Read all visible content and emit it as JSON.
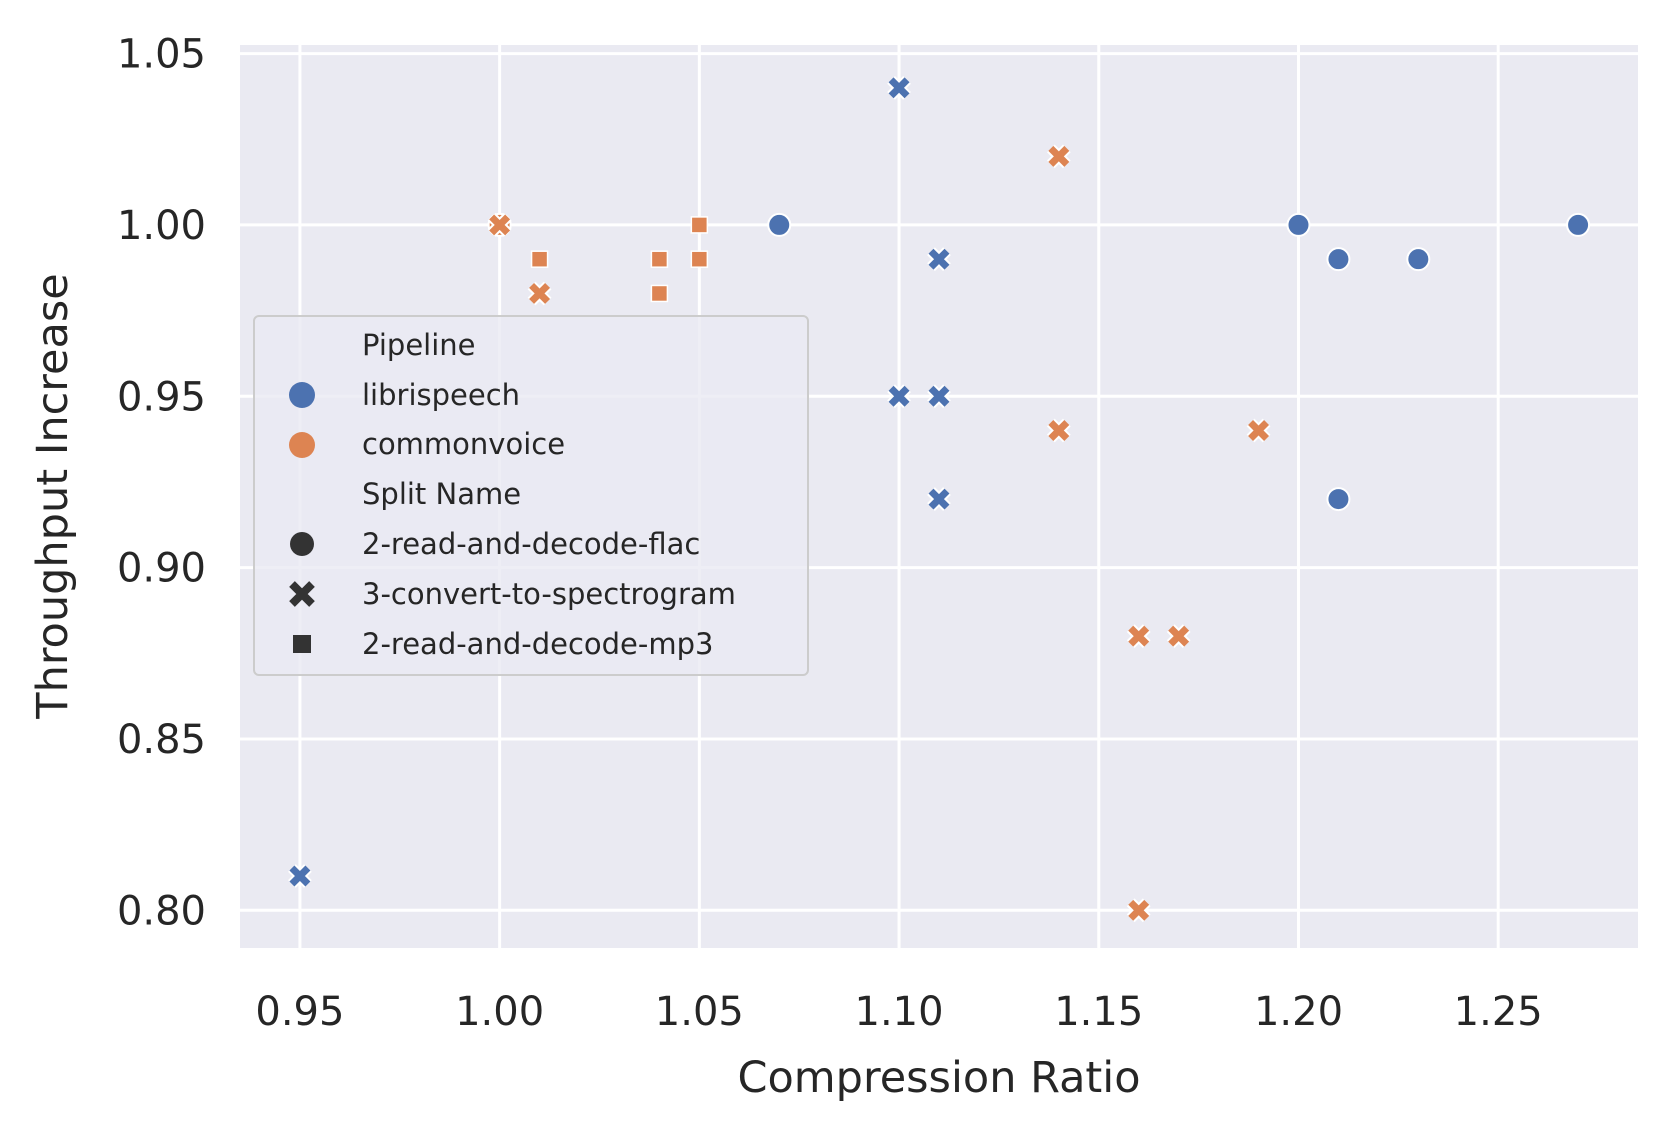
{
  "chart_data": {
    "type": "scatter",
    "xlabel": "Compression Ratio",
    "ylabel": "Throughput Increase",
    "xlim": [
      0.935,
      1.285
    ],
    "ylim": [
      0.789,
      1.0525
    ],
    "xticks": [
      0.95,
      1.0,
      1.05,
      1.1,
      1.15,
      1.2,
      1.25
    ],
    "xtick_labels": [
      "0.95",
      "1.00",
      "1.05",
      "1.10",
      "1.15",
      "1.20",
      "1.25"
    ],
    "yticks": [
      0.8,
      0.85,
      0.9,
      0.95,
      1.0,
      1.05
    ],
    "ytick_labels": [
      "0.80",
      "0.85",
      "0.90",
      "0.95",
      "1.00",
      "1.05"
    ],
    "grid": true,
    "background": "#eaeaf2",
    "legend": {
      "placement": "center-left",
      "hue_title": "Pipeline",
      "style_title": "Split Name",
      "pipelines": [
        {
          "name": "librispeech",
          "color": "#4c72b0"
        },
        {
          "name": "commonvoice",
          "color": "#dd8452"
        }
      ],
      "splits": [
        {
          "name": "2-read-and-decode-flac",
          "marker": "circle"
        },
        {
          "name": "3-convert-to-spectrogram",
          "marker": "x"
        },
        {
          "name": "2-read-and-decode-mp3",
          "marker": "square"
        }
      ]
    },
    "points": [
      {
        "x": 1.0,
        "y": 1.0,
        "pipeline": "librispeech",
        "split": "2-read-and-decode-flac"
      },
      {
        "x": 1.07,
        "y": 1.0,
        "pipeline": "librispeech",
        "split": "2-read-and-decode-flac"
      },
      {
        "x": 1.2,
        "y": 1.0,
        "pipeline": "librispeech",
        "split": "2-read-and-decode-flac"
      },
      {
        "x": 1.21,
        "y": 0.99,
        "pipeline": "librispeech",
        "split": "2-read-and-decode-flac"
      },
      {
        "x": 1.23,
        "y": 0.99,
        "pipeline": "librispeech",
        "split": "2-read-and-decode-flac"
      },
      {
        "x": 1.27,
        "y": 1.0,
        "pipeline": "librispeech",
        "split": "2-read-and-decode-flac"
      },
      {
        "x": 1.21,
        "y": 0.92,
        "pipeline": "librispeech",
        "split": "2-read-and-decode-flac"
      },
      {
        "x": 1.0,
        "y": 1.0,
        "pipeline": "librispeech",
        "split": "3-convert-to-spectrogram"
      },
      {
        "x": 1.1,
        "y": 1.04,
        "pipeline": "librispeech",
        "split": "3-convert-to-spectrogram"
      },
      {
        "x": 1.11,
        "y": 0.99,
        "pipeline": "librispeech",
        "split": "3-convert-to-spectrogram"
      },
      {
        "x": 1.1,
        "y": 0.95,
        "pipeline": "librispeech",
        "split": "3-convert-to-spectrogram"
      },
      {
        "x": 1.11,
        "y": 0.95,
        "pipeline": "librispeech",
        "split": "3-convert-to-spectrogram"
      },
      {
        "x": 1.11,
        "y": 0.92,
        "pipeline": "librispeech",
        "split": "3-convert-to-spectrogram"
      },
      {
        "x": 0.95,
        "y": 0.81,
        "pipeline": "librispeech",
        "split": "3-convert-to-spectrogram"
      },
      {
        "x": 1.0,
        "y": 1.0,
        "pipeline": "commonvoice",
        "split": "2-read-and-decode-flac"
      },
      {
        "x": 1.0,
        "y": 1.0,
        "pipeline": "commonvoice",
        "split": "3-convert-to-spectrogram"
      },
      {
        "x": 1.01,
        "y": 0.98,
        "pipeline": "commonvoice",
        "split": "3-convert-to-spectrogram"
      },
      {
        "x": 1.14,
        "y": 1.02,
        "pipeline": "commonvoice",
        "split": "3-convert-to-spectrogram"
      },
      {
        "x": 1.14,
        "y": 0.94,
        "pipeline": "commonvoice",
        "split": "3-convert-to-spectrogram"
      },
      {
        "x": 1.19,
        "y": 0.94,
        "pipeline": "commonvoice",
        "split": "3-convert-to-spectrogram"
      },
      {
        "x": 1.16,
        "y": 0.88,
        "pipeline": "commonvoice",
        "split": "3-convert-to-spectrogram"
      },
      {
        "x": 1.17,
        "y": 0.88,
        "pipeline": "commonvoice",
        "split": "3-convert-to-spectrogram"
      },
      {
        "x": 1.16,
        "y": 0.8,
        "pipeline": "commonvoice",
        "split": "3-convert-to-spectrogram"
      },
      {
        "x": 1.01,
        "y": 0.99,
        "pipeline": "commonvoice",
        "split": "2-read-and-decode-mp3"
      },
      {
        "x": 1.04,
        "y": 0.99,
        "pipeline": "commonvoice",
        "split": "2-read-and-decode-mp3"
      },
      {
        "x": 1.04,
        "y": 0.98,
        "pipeline": "commonvoice",
        "split": "2-read-and-decode-mp3"
      },
      {
        "x": 1.05,
        "y": 1.0,
        "pipeline": "commonvoice",
        "split": "2-read-and-decode-mp3"
      },
      {
        "x": 1.05,
        "y": 0.99,
        "pipeline": "commonvoice",
        "split": "2-read-and-decode-mp3"
      }
    ]
  }
}
